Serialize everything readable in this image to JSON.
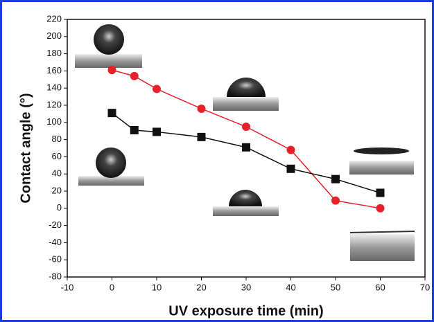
{
  "chart_data": {
    "type": "line",
    "x_label": "UV exposure time (min)",
    "y_label": "Contact angle (°)",
    "x": [
      0,
      5,
      10,
      20,
      30,
      40,
      50,
      60
    ],
    "series": [
      {
        "color": "#e8202a",
        "marker": "circle",
        "values": [
          161,
          154,
          139,
          116,
          95,
          68,
          9,
          0
        ]
      },
      {
        "color": "#111111",
        "marker": "square",
        "values": [
          111,
          91,
          89,
          83,
          71,
          46,
          34,
          18
        ]
      }
    ],
    "xlim": [
      -10,
      70
    ],
    "xticks": [
      -10,
      0,
      10,
      20,
      30,
      40,
      50,
      60,
      70
    ],
    "ylim": [
      -80,
      220
    ],
    "yticks": [
      -80,
      -60,
      -40,
      -20,
      0,
      20,
      40,
      60,
      80,
      100,
      120,
      140,
      160,
      180,
      200,
      220
    ]
  }
}
